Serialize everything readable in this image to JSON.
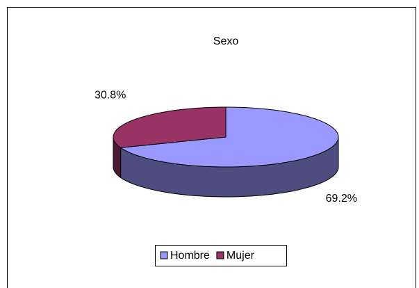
{
  "chart_data": {
    "type": "pie",
    "title": "Sexo",
    "categories": [
      "Hombre",
      "Mujer"
    ],
    "values": [
      69.2,
      30.8
    ],
    "value_labels": [
      "69.2%",
      "30.8%"
    ],
    "colors": [
      "#9999ff",
      "#993366"
    ],
    "legend": "bottom"
  }
}
